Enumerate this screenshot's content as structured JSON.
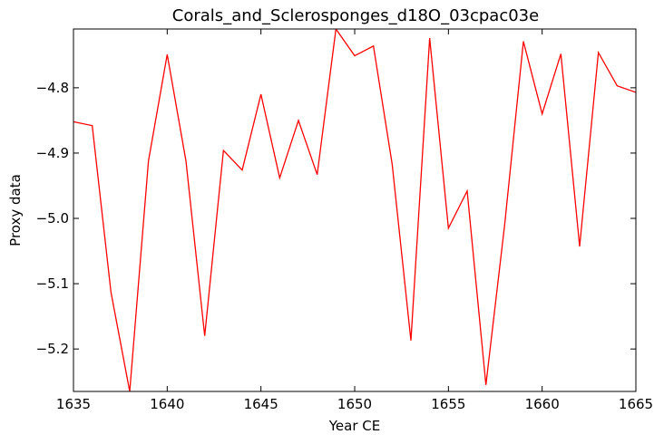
{
  "chart_data": {
    "type": "line",
    "title": "Corals_and_Sclerosponges_d18O_03cpac03e",
    "xlabel": "Year CE",
    "ylabel": "Proxy data",
    "xlim": [
      1635,
      1665
    ],
    "ylim": [
      -5.265,
      -4.71
    ],
    "x_ticks": [
      1635,
      1640,
      1645,
      1650,
      1655,
      1660,
      1665
    ],
    "x_tick_labels": [
      "1635",
      "1640",
      "1645",
      "1650",
      "1655",
      "1660",
      "1665"
    ],
    "y_ticks": [
      -4.8,
      -4.9,
      -5.0,
      -5.1,
      -5.2
    ],
    "y_tick_labels": [
      "−4.8",
      "−4.9",
      "−5.0",
      "−5.1",
      "−5.2"
    ],
    "grid": false,
    "series": [
      {
        "color": "#ff0000",
        "x": [
          1635,
          1636,
          1637,
          1638,
          1639,
          1640,
          1641,
          1642,
          1643,
          1644,
          1645,
          1646,
          1647,
          1648,
          1649,
          1650,
          1651,
          1652,
          1653,
          1654,
          1655,
          1656,
          1657,
          1658,
          1659,
          1660,
          1661,
          1662,
          1663,
          1664,
          1665
        ],
        "y": [
          -4.852,
          -4.858,
          -5.113,
          -5.265,
          -4.912,
          -4.749,
          -4.912,
          -5.18,
          -4.896,
          -4.926,
          -4.81,
          -4.938,
          -4.85,
          -4.933,
          -4.71,
          -4.751,
          -4.736,
          -4.917,
          -5.187,
          -4.724,
          -5.015,
          -4.958,
          -5.255,
          -5.01,
          -4.729,
          -4.84,
          -4.748,
          -5.043,
          -4.746,
          -4.797,
          -4.807
        ]
      }
    ]
  }
}
